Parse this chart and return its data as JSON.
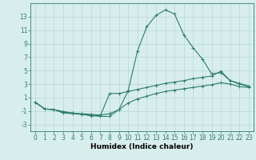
{
  "xlabel": "Humidex (Indice chaleur)",
  "x_values": [
    0,
    1,
    2,
    3,
    4,
    5,
    6,
    7,
    8,
    9,
    10,
    11,
    12,
    13,
    14,
    15,
    16,
    17,
    18,
    19,
    20,
    21,
    22,
    23
  ],
  "line1_y": [
    0.3,
    -0.7,
    -0.8,
    -1.3,
    -1.4,
    -1.5,
    -1.7,
    -1.8,
    -1.8,
    -0.8,
    2.0,
    7.9,
    11.5,
    13.2,
    14.0,
    13.4,
    10.3,
    8.4,
    6.7,
    4.5,
    4.7,
    3.5,
    3.0,
    2.6
  ],
  "line2_y": [
    0.3,
    -0.7,
    -0.8,
    -1.1,
    -1.3,
    -1.5,
    -1.6,
    -1.7,
    1.6,
    1.6,
    1.9,
    2.2,
    2.5,
    2.8,
    3.1,
    3.3,
    3.5,
    3.8,
    4.0,
    4.2,
    4.9,
    3.5,
    3.1,
    2.7
  ],
  "line3_y": [
    0.3,
    -0.7,
    -0.8,
    -1.1,
    -1.3,
    -1.4,
    -1.5,
    -1.6,
    -1.4,
    -0.8,
    0.2,
    0.8,
    1.2,
    1.6,
    1.9,
    2.1,
    2.3,
    2.5,
    2.7,
    2.9,
    3.2,
    3.0,
    2.6,
    2.5
  ],
  "line_color": "#2e7d6e",
  "bg_color": "#d8eeec",
  "grid_color": "#b5d8d4",
  "ylim": [
    -4,
    15
  ],
  "xlim": [
    -0.5,
    23.5
  ],
  "yticks": [
    -3,
    -1,
    1,
    3,
    5,
    7,
    9,
    11,
    13
  ],
  "xticks": [
    0,
    1,
    2,
    3,
    4,
    5,
    6,
    7,
    8,
    9,
    10,
    11,
    12,
    13,
    14,
    15,
    16,
    17,
    18,
    19,
    20,
    21,
    22,
    23
  ],
  "marker": "+",
  "marker_size": 3,
  "linewidth": 0.8,
  "xlabel_fontsize": 6.5,
  "tick_fontsize": 5.5
}
